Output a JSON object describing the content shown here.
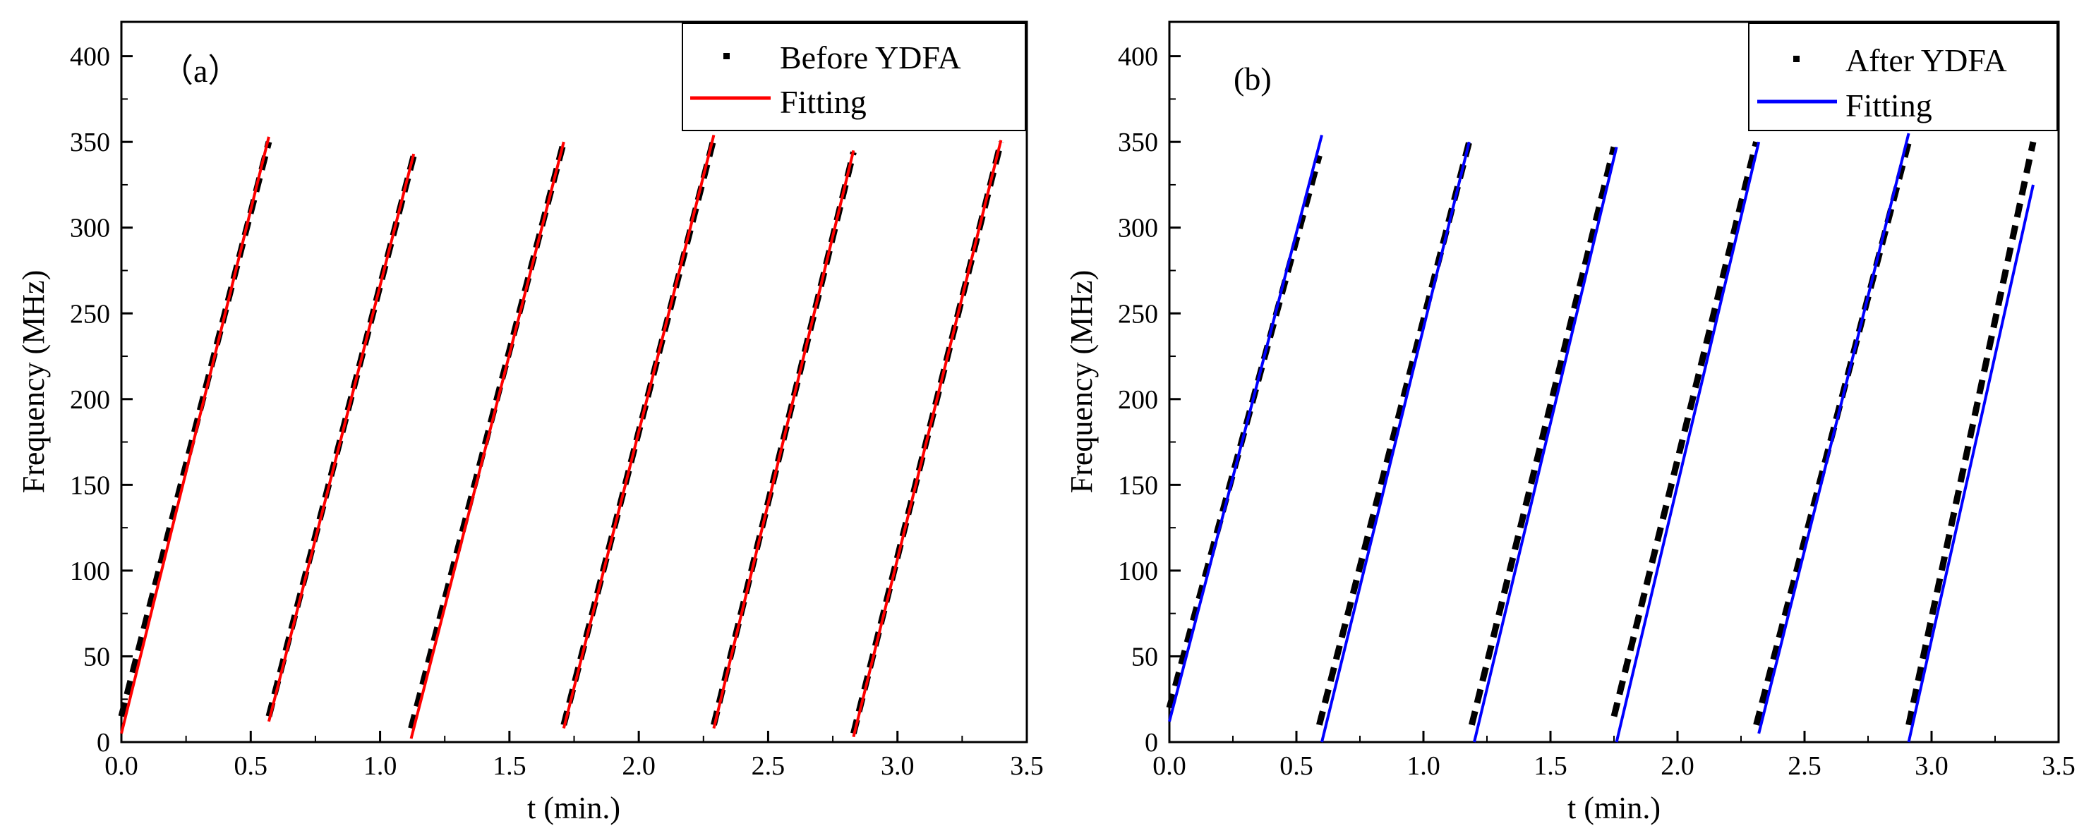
{
  "chart_data": [
    {
      "type": "line",
      "panel_label": "（a）",
      "xlabel": "t (min.)",
      "ylabel": "Frequency (MHz)",
      "xlim": [
        0.0,
        3.5
      ],
      "ylim": [
        0,
        420
      ],
      "xticks": [
        "0.0",
        "0.5",
        "1.0",
        "1.5",
        "2.0",
        "2.5",
        "3.0",
        "3.5"
      ],
      "yticks": [
        "0",
        "50",
        "100",
        "150",
        "200",
        "250",
        "300",
        "350",
        "400"
      ],
      "legend": {
        "position": "top-right",
        "data_label": "Before YDFA",
        "fit_label": "Fitting"
      },
      "colors": {
        "data": "#000000",
        "fit": "#ff0000"
      },
      "series": [
        {
          "name": "Before YDFA",
          "segments": [
            {
              "t": [
                0.0,
                0.57
              ],
              "f": [
                15,
                350
              ]
            },
            {
              "t": [
                0.57,
                1.13
              ],
              "f": [
                15,
                342
              ]
            },
            {
              "t": [
                1.12,
                1.71
              ],
              "f": [
                8,
                350
              ]
            },
            {
              "t": [
                1.71,
                2.29
              ],
              "f": [
                10,
                352
              ]
            },
            {
              "t": [
                2.29,
                2.83
              ],
              "f": [
                10,
                344
              ]
            },
            {
              "t": [
                2.83,
                3.4
              ],
              "f": [
                5,
                350
              ]
            }
          ]
        },
        {
          "name": "Fitting",
          "segments": [
            {
              "t": [
                0.0,
                0.57
              ],
              "f": [
                5,
                353
              ]
            },
            {
              "t": [
                0.57,
                1.13
              ],
              "f": [
                12,
                343
              ]
            },
            {
              "t": [
                1.12,
                1.71
              ],
              "f": [
                2,
                350
              ]
            },
            {
              "t": [
                1.71,
                2.29
              ],
              "f": [
                8,
                354
              ]
            },
            {
              "t": [
                2.29,
                2.83
              ],
              "f": [
                8,
                345
              ]
            },
            {
              "t": [
                2.83,
                3.4
              ],
              "f": [
                3,
                351
              ]
            }
          ]
        }
      ]
    },
    {
      "type": "line",
      "panel_label": "(b)",
      "xlabel": "t (min.)",
      "ylabel": "Frequency (MHz)",
      "xlim": [
        0.0,
        3.5
      ],
      "ylim": [
        0,
        420
      ],
      "xticks": [
        "0.0",
        "0.5",
        "1.0",
        "1.5",
        "2.0",
        "2.5",
        "3.0",
        "3.5"
      ],
      "yticks": [
        "0",
        "50",
        "100",
        "150",
        "200",
        "250",
        "300",
        "350",
        "400"
      ],
      "legend": {
        "position": "top-right",
        "data_label": "After YDFA",
        "fit_label": "Fitting"
      },
      "colors": {
        "data": "#000000",
        "fit": "#0000ff"
      },
      "series": [
        {
          "name": "After YDFA",
          "segments": [
            {
              "t": [
                0.0,
                0.59
              ],
              "f": [
                20,
                342
              ]
            },
            {
              "t": [
                0.59,
                1.18
              ],
              "f": [
                10,
                350
              ]
            },
            {
              "t": [
                1.19,
                1.75
              ],
              "f": [
                10,
                347
              ]
            },
            {
              "t": [
                1.75,
                2.31
              ],
              "f": [
                15,
                350
              ]
            },
            {
              "t": [
                2.31,
                2.91
              ],
              "f": [
                10,
                350
              ]
            },
            {
              "t": [
                2.91,
                3.4
              ],
              "f": [
                10,
                350
              ]
            }
          ]
        },
        {
          "name": "Fitting",
          "segments": [
            {
              "t": [
                0.0,
                0.6
              ],
              "f": [
                12,
                354
              ]
            },
            {
              "t": [
                0.6,
                1.18
              ],
              "f": [
                0,
                350
              ]
            },
            {
              "t": [
                1.2,
                1.76
              ],
              "f": [
                0,
                347
              ]
            },
            {
              "t": [
                1.76,
                2.32
              ],
              "f": [
                0,
                350
              ]
            },
            {
              "t": [
                2.32,
                2.91
              ],
              "f": [
                5,
                355
              ]
            },
            {
              "t": [
                2.91,
                3.4
              ],
              "f": [
                0,
                325
              ]
            }
          ]
        }
      ]
    }
  ]
}
